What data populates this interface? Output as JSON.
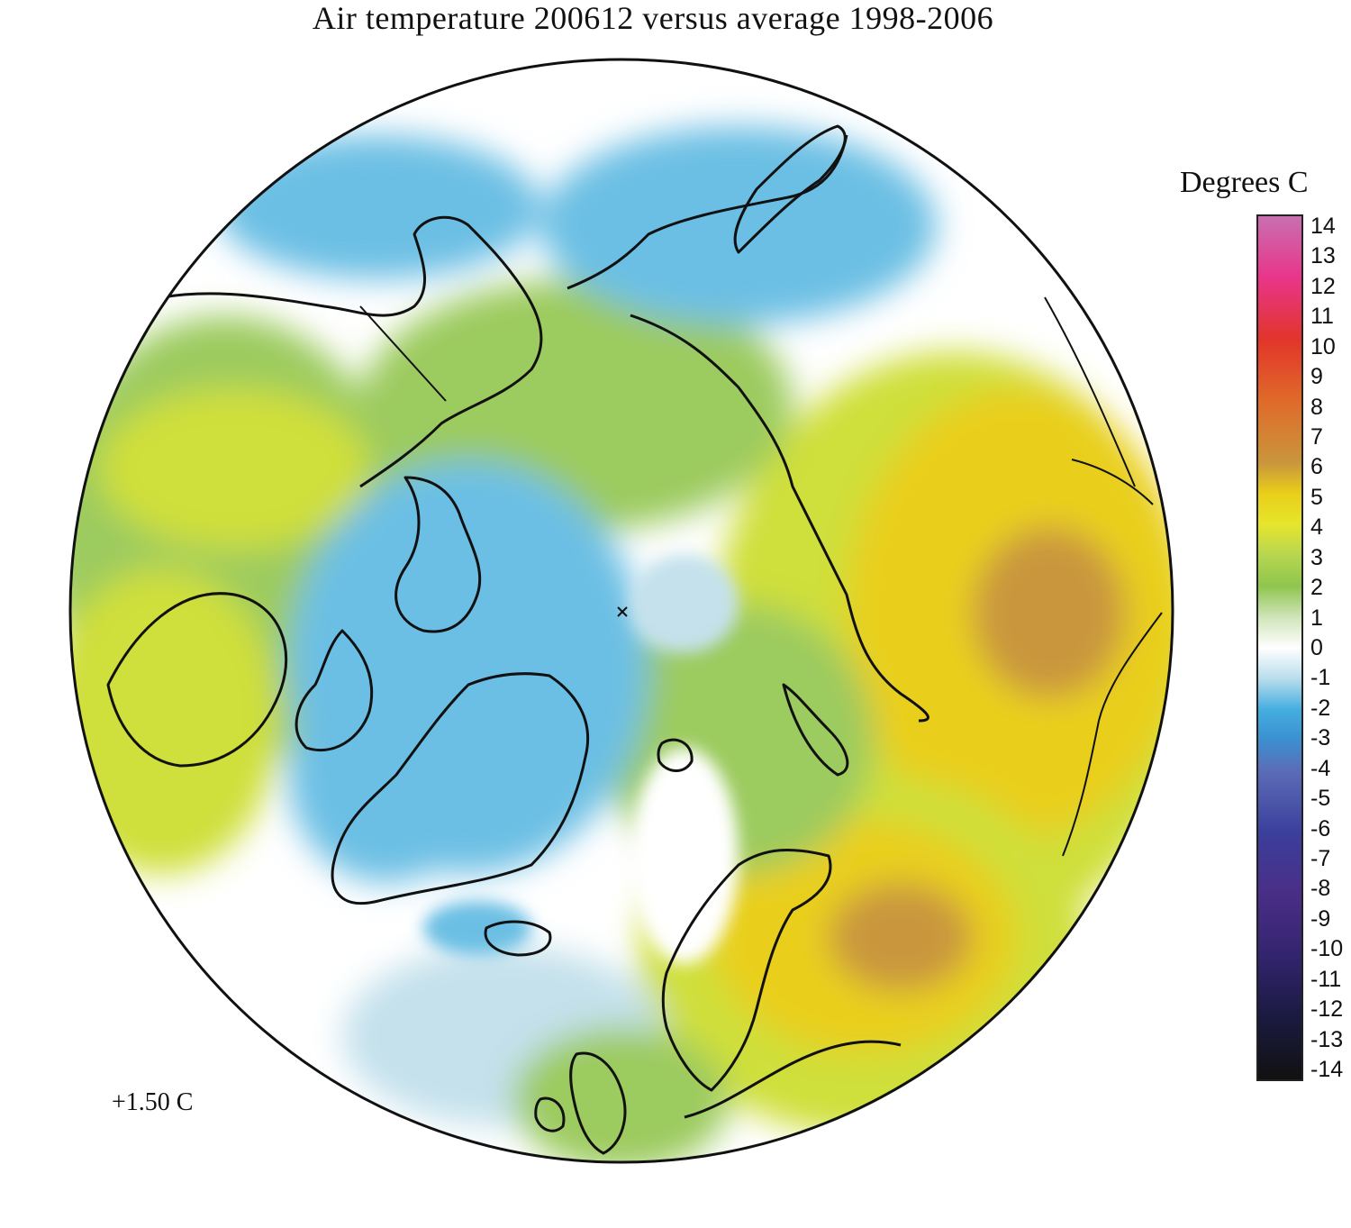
{
  "title": "Air temperature 200612 versus average 1998-2006",
  "legend": {
    "title": "Degrees C",
    "ticks": [
      "14",
      "13",
      "12",
      "11",
      "10",
      "9",
      "8",
      "7",
      "6",
      "5",
      "4",
      "3",
      "2",
      "1",
      "0",
      "-1",
      "-2",
      "-3",
      "-4",
      "-5",
      "-6",
      "-7",
      "-8",
      "-9",
      "-10",
      "-11",
      "-12",
      "-13",
      "-14"
    ],
    "range": [
      -14,
      14
    ],
    "colors": [
      {
        "value": 14,
        "color": "#c86fb0"
      },
      {
        "value": 12,
        "color": "#e8358a"
      },
      {
        "value": 10,
        "color": "#e2352a"
      },
      {
        "value": 8,
        "color": "#e06a2a"
      },
      {
        "value": 6,
        "color": "#c9963c"
      },
      {
        "value": 5,
        "color": "#e9cf1a"
      },
      {
        "value": 4,
        "color": "#e6e52c"
      },
      {
        "value": 3,
        "color": "#b6d650"
      },
      {
        "value": 2,
        "color": "#8fc54e"
      },
      {
        "value": 1,
        "color": "#cfe4b8"
      },
      {
        "value": 0,
        "color": "#ffffff"
      },
      {
        "value": -1,
        "color": "#b8ddec"
      },
      {
        "value": -2,
        "color": "#45aedf"
      },
      {
        "value": -3,
        "color": "#3c8fd0"
      },
      {
        "value": -4,
        "color": "#5b6cb6"
      },
      {
        "value": -6,
        "color": "#3b3f9c"
      },
      {
        "value": -8,
        "color": "#4a2e86"
      },
      {
        "value": -10,
        "color": "#33246e"
      },
      {
        "value": -12,
        "color": "#1a1a40"
      },
      {
        "value": -14,
        "color": "#111111"
      }
    ]
  },
  "annotation": "+1.50 C",
  "map": {
    "projection": "polar stereographic, north pole centered",
    "background": "#ffffff",
    "coastline_color": "#111111",
    "palette": {
      "warm_core": "#c9963c",
      "warm": "#e9cf1a",
      "yellow_green": "#cfdf3a",
      "green": "#9ccb5e",
      "pale_green": "#d6e7c4",
      "neutral": "#ffffff",
      "pale_blue": "#c4e1ec",
      "blue": "#6cbfe4",
      "deep_blue": "#46aee0"
    }
  }
}
